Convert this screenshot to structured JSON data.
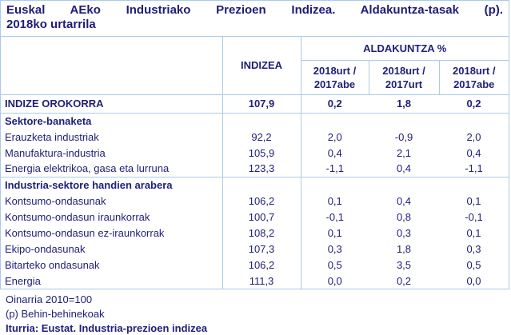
{
  "title": {
    "line1": "Euskal AEko Industriako Prezioen Indizea. Aldakuntza-tasak (p).",
    "line2": "2018ko urtarrila"
  },
  "colors": {
    "text_navy": "#20207a",
    "border_light_blue": "#a9cbea",
    "background": "#ffffff"
  },
  "table": {
    "header": {
      "indizea": "INDIZEA",
      "aldakuntza": "ALDAKUNTZA %",
      "periods": [
        "2018urt / 2017abe",
        "2018urt / 2017urt",
        "2018urt / 2017abe"
      ]
    },
    "rows": [
      {
        "label": "INDIZE OROKORRA",
        "values": [
          "107,9",
          "0,2",
          "1,8",
          "0,2"
        ]
      },
      {
        "label": "Sektore-banaketa",
        "values": [
          "",
          "",
          "",
          ""
        ]
      },
      {
        "label": "Erauzketa industriak",
        "values": [
          "92,2",
          "2,0",
          "-0,9",
          "2,0"
        ]
      },
      {
        "label": "Manufaktura-industria",
        "values": [
          "105,9",
          "0,4",
          "2,1",
          "0,4"
        ]
      },
      {
        "label": "Energia elektrikoa, gasa eta lurruna",
        "values": [
          "123,3",
          "-1,1",
          "0,4",
          "-1,1"
        ]
      },
      {
        "label": "Industria-sektore handien arabera",
        "values": [
          "",
          "",
          "",
          ""
        ]
      },
      {
        "label": "Kontsumo-ondasunak",
        "values": [
          "106,2",
          "0,1",
          "0,4",
          "0,1"
        ]
      },
      {
        "label": "Kontsumo-ondasun iraunkorrak",
        "values": [
          "100,7",
          "-0,1",
          "0,8",
          "-0,1"
        ]
      },
      {
        "label": "Kontsumo-ondasun ez-iraunkorrak",
        "values": [
          "108,2",
          "0,1",
          "0,3",
          "0,1"
        ]
      },
      {
        "label": "Ekipo-ondasunak",
        "values": [
          "107,3",
          "0,3",
          "1,8",
          "0,3"
        ]
      },
      {
        "label": "Bitarteko ondasunak",
        "values": [
          "106,2",
          "0,5",
          "3,5",
          "0,5"
        ]
      },
      {
        "label": "Energia",
        "values": [
          "111,3",
          "0,0",
          "0,2",
          "0,0"
        ]
      }
    ]
  },
  "footer": {
    "line1": "Oinarria 2010=100",
    "line2": "(p) Behin-behinekoak",
    "line3": "Iturria: Eustat. Industria-prezioen indizea"
  }
}
